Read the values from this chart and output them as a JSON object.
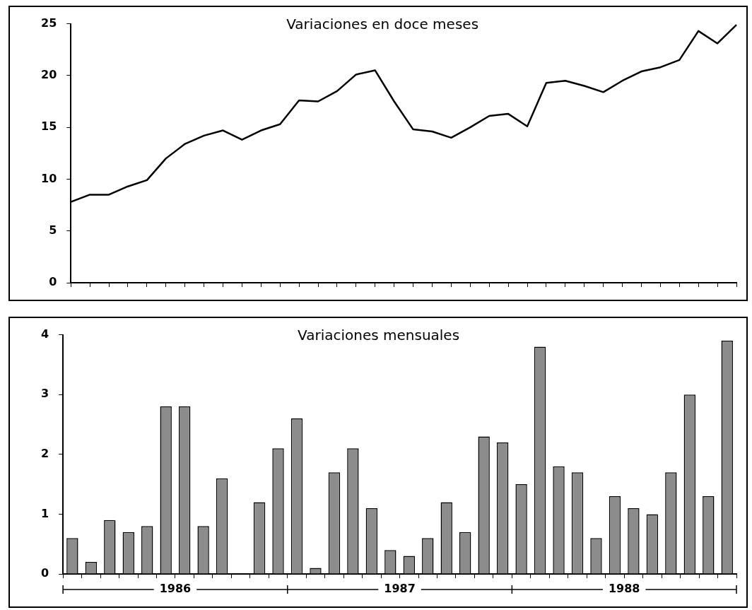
{
  "chart_data": [
    {
      "type": "line",
      "title": "Variaciones en doce meses",
      "categories": [
        null,
        null,
        null,
        null,
        null,
        null,
        null,
        null,
        null,
        null,
        null,
        null,
        null,
        null,
        null,
        null,
        null,
        null,
        null,
        null,
        null,
        null,
        null,
        null,
        null,
        null,
        null,
        null,
        null,
        null,
        null,
        null,
        null,
        null,
        null,
        null
      ],
      "values": [
        7.8,
        8.5,
        8.5,
        9.3,
        9.9,
        12.0,
        13.4,
        14.2,
        14.7,
        13.8,
        14.7,
        15.3,
        17.6,
        17.5,
        18.5,
        20.1,
        20.5,
        17.5,
        14.8,
        14.6,
        14.0,
        15.0,
        16.1,
        16.3,
        15.1,
        19.3,
        19.5,
        19.0,
        18.4,
        19.5,
        20.4,
        20.8,
        21.5,
        24.3,
        23.1,
        24.9
      ],
      "color": "#000000",
      "ylim": [
        0,
        25
      ],
      "yticks": [
        0,
        5,
        10,
        15,
        20,
        25
      ],
      "tick_labels": "y",
      "grid": false,
      "legend": false,
      "marker": "none",
      "line_style": "solid"
    },
    {
      "type": "bar",
      "title": "Variaciones mensuales",
      "categories": [
        null,
        null,
        null,
        null,
        null,
        null,
        null,
        null,
        null,
        null,
        null,
        null,
        null,
        null,
        null,
        null,
        null,
        null,
        null,
        null,
        null,
        null,
        null,
        null,
        null,
        null,
        null,
        null,
        null,
        null,
        null,
        null,
        null,
        null,
        null,
        null
      ],
      "values": [
        0.6,
        0.2,
        0.9,
        0.7,
        0.8,
        2.8,
        2.8,
        0.8,
        1.6,
        0,
        1.2,
        2.1,
        2.6,
        0.1,
        1.7,
        2.1,
        1.1,
        0.4,
        0.3,
        0.6,
        1.2,
        0.7,
        2.3,
        2.2,
        1.5,
        3.8,
        1.8,
        1.7,
        0.6,
        1.3,
        1.1,
        1.0,
        1.7,
        3.0,
        1.3,
        3.9
      ],
      "color": "#8c8c8c",
      "ylim": [
        0,
        4
      ],
      "yticks": [
        0,
        1,
        2,
        3,
        4
      ],
      "tick_labels": "y",
      "grid": false,
      "legend": false,
      "annotations": [
        "1986",
        "1987",
        "1988"
      ]
    }
  ]
}
